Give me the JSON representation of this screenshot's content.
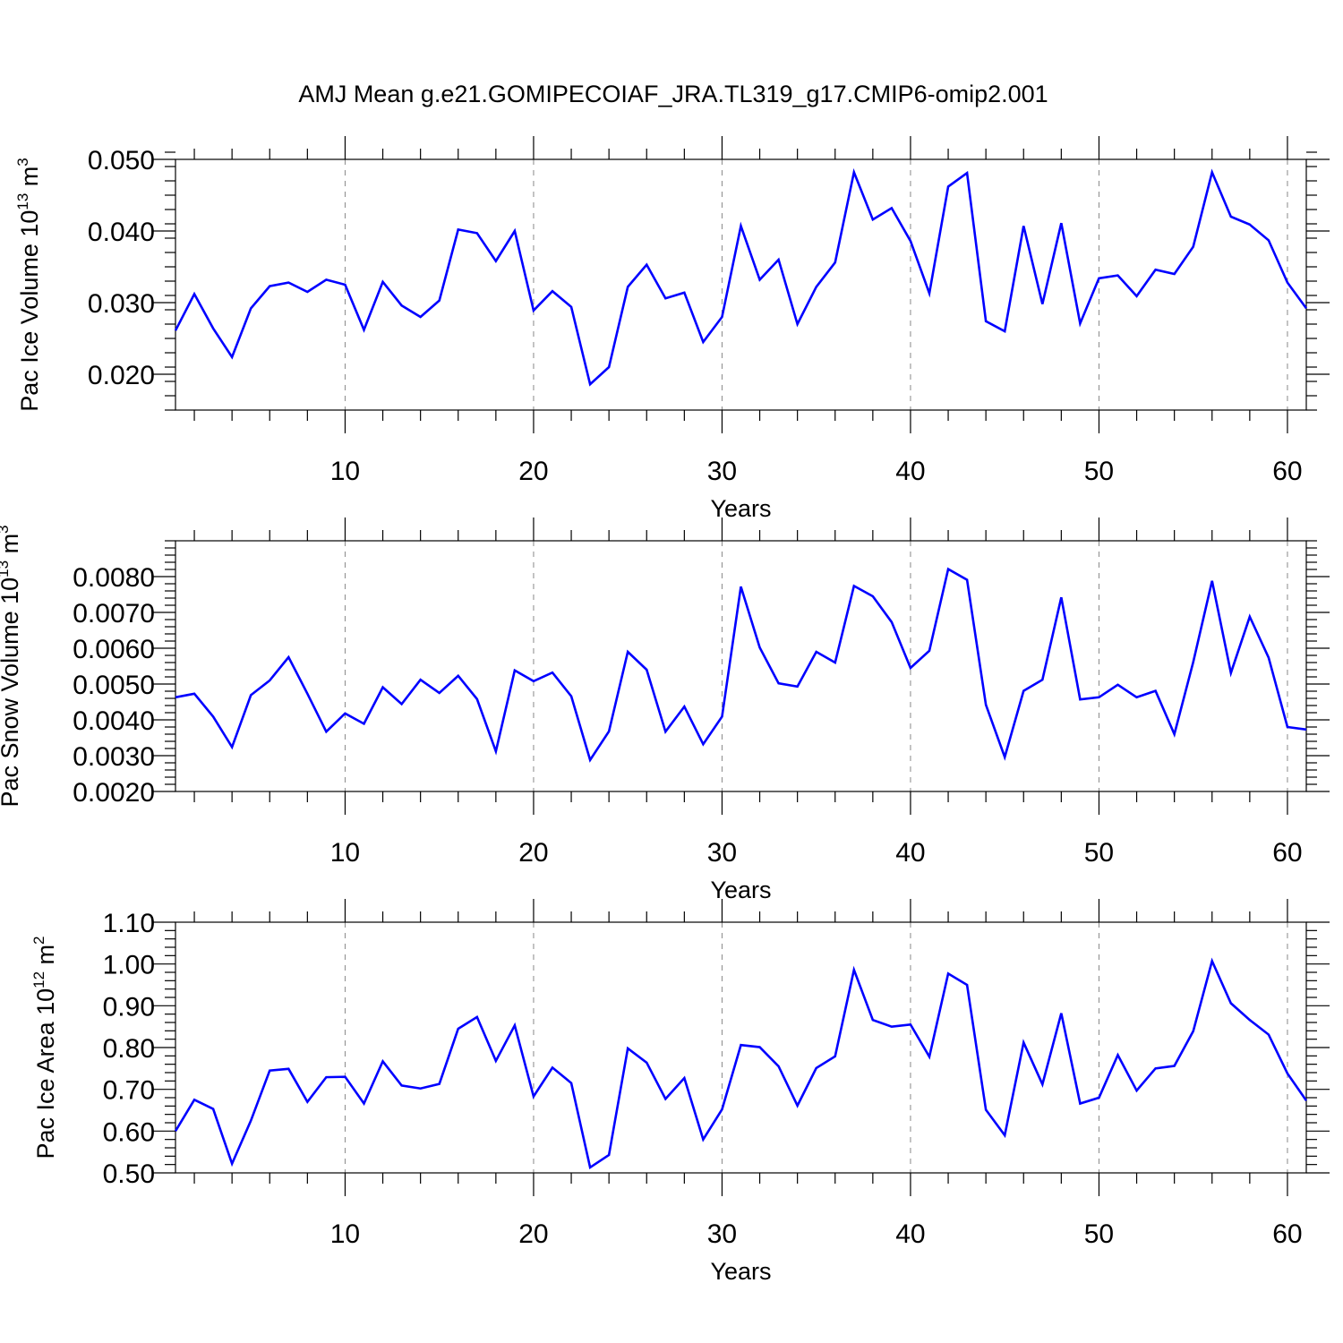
{
  "chart_data": [
    {
      "type": "line",
      "title": "AMJ Mean g.e21.GOMIPECOIAF_JRA.TL319_g17.CMIP6-omip2.001",
      "xlabel": "Years",
      "ylabel": "Pac Ice Volume 10",
      "ylabel_exp": "13",
      "ylabel_unit": "m",
      "ylabel_unit_exp": "3",
      "xlim": [
        1,
        61
      ],
      "ylim": [
        0.015,
        0.05
      ],
      "xticks": [
        10,
        20,
        30,
        40,
        50,
        60
      ],
      "xtick_labels": [
        "10",
        "20",
        "30",
        "40",
        "50",
        "60"
      ],
      "yticks": [
        0.02,
        0.03,
        0.04,
        0.05
      ],
      "ytick_labels": [
        "0.020",
        "0.030",
        "0.040",
        "0.050"
      ],
      "yminor_step": 0.002,
      "grid": "x-dashed",
      "x": [
        1,
        2,
        3,
        4,
        5,
        6,
        7,
        8,
        9,
        10,
        11,
        12,
        13,
        14,
        15,
        16,
        17,
        18,
        19,
        20,
        21,
        22,
        23,
        24,
        25,
        26,
        27,
        28,
        29,
        30,
        31,
        32,
        33,
        34,
        35,
        36,
        37,
        38,
        39,
        40,
        41,
        42,
        43,
        44,
        45,
        46,
        47,
        48,
        49,
        50,
        51,
        52,
        53,
        54,
        55,
        56,
        57,
        58,
        59,
        60,
        61
      ],
      "series": [
        {
          "name": "Pac Ice Volume",
          "color": "#0000ff",
          "values": [
            0.0261,
            0.0312,
            0.0264,
            0.0224,
            0.0292,
            0.0323,
            0.0328,
            0.0315,
            0.0332,
            0.0325,
            0.0262,
            0.0329,
            0.0296,
            0.028,
            0.0303,
            0.0402,
            0.0397,
            0.0358,
            0.04,
            0.0289,
            0.0316,
            0.0294,
            0.0186,
            0.021,
            0.0322,
            0.0353,
            0.0306,
            0.0314,
            0.0245,
            0.028,
            0.0407,
            0.0332,
            0.036,
            0.027,
            0.0322,
            0.0356,
            0.0482,
            0.0416,
            0.0432,
            0.0386,
            0.0313,
            0.0462,
            0.0481,
            0.0274,
            0.026,
            0.0407,
            0.0298,
            0.0411,
            0.0271,
            0.0334,
            0.0338,
            0.0309,
            0.0346,
            0.034,
            0.0378,
            0.0482,
            0.042,
            0.0409,
            0.0387,
            0.0328,
            0.0292
          ]
        }
      ]
    },
    {
      "type": "line",
      "title": "",
      "xlabel": "Years",
      "ylabel": "Pac Snow Volume 10",
      "ylabel_exp": "13",
      "ylabel_unit": "m",
      "ylabel_unit_exp": "3",
      "xlim": [
        1,
        61
      ],
      "ylim": [
        0.002,
        0.009
      ],
      "xticks": [
        10,
        20,
        30,
        40,
        50,
        60
      ],
      "xtick_labels": [
        "10",
        "20",
        "30",
        "40",
        "50",
        "60"
      ],
      "yticks": [
        0.002,
        0.003,
        0.004,
        0.005,
        0.006,
        0.007,
        0.008
      ],
      "ytick_labels": [
        "0.0020",
        "0.0030",
        "0.0040",
        "0.0050",
        "0.0060",
        "0.0070",
        "0.0080"
      ],
      "yminor_step": 0.0002,
      "grid": "x-dashed",
      "x": [
        1,
        2,
        3,
        4,
        5,
        6,
        7,
        8,
        9,
        10,
        11,
        12,
        13,
        14,
        15,
        16,
        17,
        18,
        19,
        20,
        21,
        22,
        23,
        24,
        25,
        26,
        27,
        28,
        29,
        30,
        31,
        32,
        33,
        34,
        35,
        36,
        37,
        38,
        39,
        40,
        41,
        42,
        43,
        44,
        45,
        46,
        47,
        48,
        49,
        50,
        51,
        52,
        53,
        54,
        55,
        56,
        57,
        58,
        59,
        60,
        61
      ],
      "series": [
        {
          "name": "Pac Snow Volume",
          "color": "#0000ff",
          "values": [
            0.00463,
            0.00473,
            0.00409,
            0.00324,
            0.00469,
            0.0051,
            0.00575,
            0.00473,
            0.00367,
            0.00418,
            0.00389,
            0.00491,
            0.00444,
            0.00512,
            0.00475,
            0.00523,
            0.00458,
            0.00312,
            0.00538,
            0.00508,
            0.00532,
            0.00466,
            0.00288,
            0.00368,
            0.0059,
            0.0054,
            0.00367,
            0.00437,
            0.00332,
            0.00409,
            0.00772,
            0.00602,
            0.00502,
            0.00493,
            0.0059,
            0.0056,
            0.00774,
            0.00745,
            0.00673,
            0.00545,
            0.00593,
            0.00821,
            0.00791,
            0.00442,
            0.00296,
            0.00481,
            0.00512,
            0.00742,
            0.00457,
            0.00463,
            0.00498,
            0.00463,
            0.00481,
            0.0036,
            0.00561,
            0.00788,
            0.00531,
            0.00688,
            0.00574,
            0.0038,
            0.00373
          ]
        }
      ]
    },
    {
      "type": "line",
      "title": "",
      "xlabel": "Years",
      "ylabel": "Pac Ice Area 10",
      "ylabel_exp": "12",
      "ylabel_unit": "m",
      "ylabel_unit_exp": "2",
      "xlim": [
        1,
        61
      ],
      "ylim": [
        0.5,
        1.1
      ],
      "xticks": [
        10,
        20,
        30,
        40,
        50,
        60
      ],
      "xtick_labels": [
        "10",
        "20",
        "30",
        "40",
        "50",
        "60"
      ],
      "yticks": [
        0.5,
        0.6,
        0.7,
        0.8,
        0.9,
        1.0,
        1.1
      ],
      "ytick_labels": [
        "0.50",
        "0.60",
        "0.70",
        "0.80",
        "0.90",
        "1.00",
        "1.10"
      ],
      "yminor_step": 0.02,
      "grid": "x-dashed",
      "x": [
        1,
        2,
        3,
        4,
        5,
        6,
        7,
        8,
        9,
        10,
        11,
        12,
        13,
        14,
        15,
        16,
        17,
        18,
        19,
        20,
        21,
        22,
        23,
        24,
        25,
        26,
        27,
        28,
        29,
        30,
        31,
        32,
        33,
        34,
        35,
        36,
        37,
        38,
        39,
        40,
        41,
        42,
        43,
        44,
        45,
        46,
        47,
        48,
        49,
        50,
        51,
        52,
        53,
        54,
        55,
        56,
        57,
        58,
        59,
        60,
        61
      ],
      "series": [
        {
          "name": "Pac Ice Area",
          "color": "#0000ff",
          "values": [
            0.6,
            0.675,
            0.653,
            0.522,
            0.625,
            0.745,
            0.749,
            0.67,
            0.729,
            0.73,
            0.666,
            0.767,
            0.709,
            0.702,
            0.713,
            0.845,
            0.873,
            0.768,
            0.853,
            0.683,
            0.752,
            0.715,
            0.513,
            0.543,
            0.798,
            0.764,
            0.677,
            0.727,
            0.58,
            0.652,
            0.806,
            0.801,
            0.755,
            0.661,
            0.751,
            0.779,
            0.986,
            0.866,
            0.85,
            0.855,
            0.778,
            0.977,
            0.95,
            0.651,
            0.59,
            0.812,
            0.712,
            0.882,
            0.666,
            0.68,
            0.782,
            0.697,
            0.75,
            0.756,
            0.839,
            1.007,
            0.906,
            0.866,
            0.831,
            0.738,
            0.673
          ]
        }
      ]
    }
  ]
}
